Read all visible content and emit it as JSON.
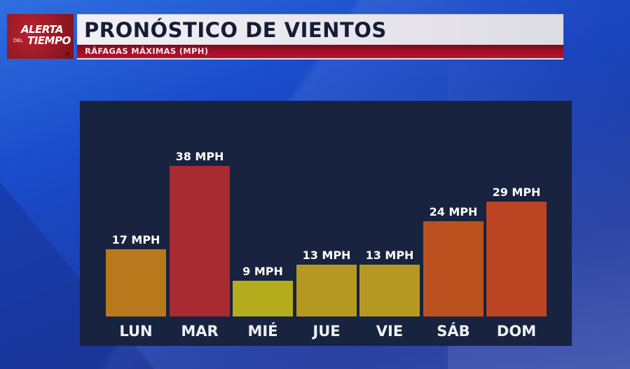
{
  "logo": {
    "line1": "ALERTA",
    "line2_small": "DEL",
    "line2_big": "TIEMPO"
  },
  "header": {
    "title": "PRONÓSTICO DE VIENTOS",
    "subtitle": "RÁFAGAS MÁXIMAS (MPH)"
  },
  "chart_data": {
    "type": "bar",
    "title": "PRONÓSTICO DE VIENTOS",
    "subtitle": "RÁFAGAS MÁXIMAS (MPH)",
    "xlabel": "",
    "ylabel": "Ráfagas máximas (MPH)",
    "categories": [
      "LUN",
      "MAR",
      "MIÉ",
      "JUE",
      "VIE",
      "SÁB",
      "DOM"
    ],
    "values": [
      17,
      38,
      9,
      13,
      13,
      24,
      29
    ],
    "labels": [
      "17 MPH",
      "38 MPH",
      "9 MPH",
      "13 MPH",
      "13 MPH",
      "24 MPH",
      "29 MPH"
    ],
    "colors": [
      "#b8781c",
      "#a82b32",
      "#b3ad1e",
      "#b59822",
      "#b59822",
      "#bb511f",
      "#ba4422"
    ],
    "grid": false,
    "legend": null,
    "ylim": [
      0,
      40
    ]
  },
  "colors": {
    "panel_bg": "#18233f",
    "title_text": "#151d36",
    "brand_red": "#a20f27"
  }
}
